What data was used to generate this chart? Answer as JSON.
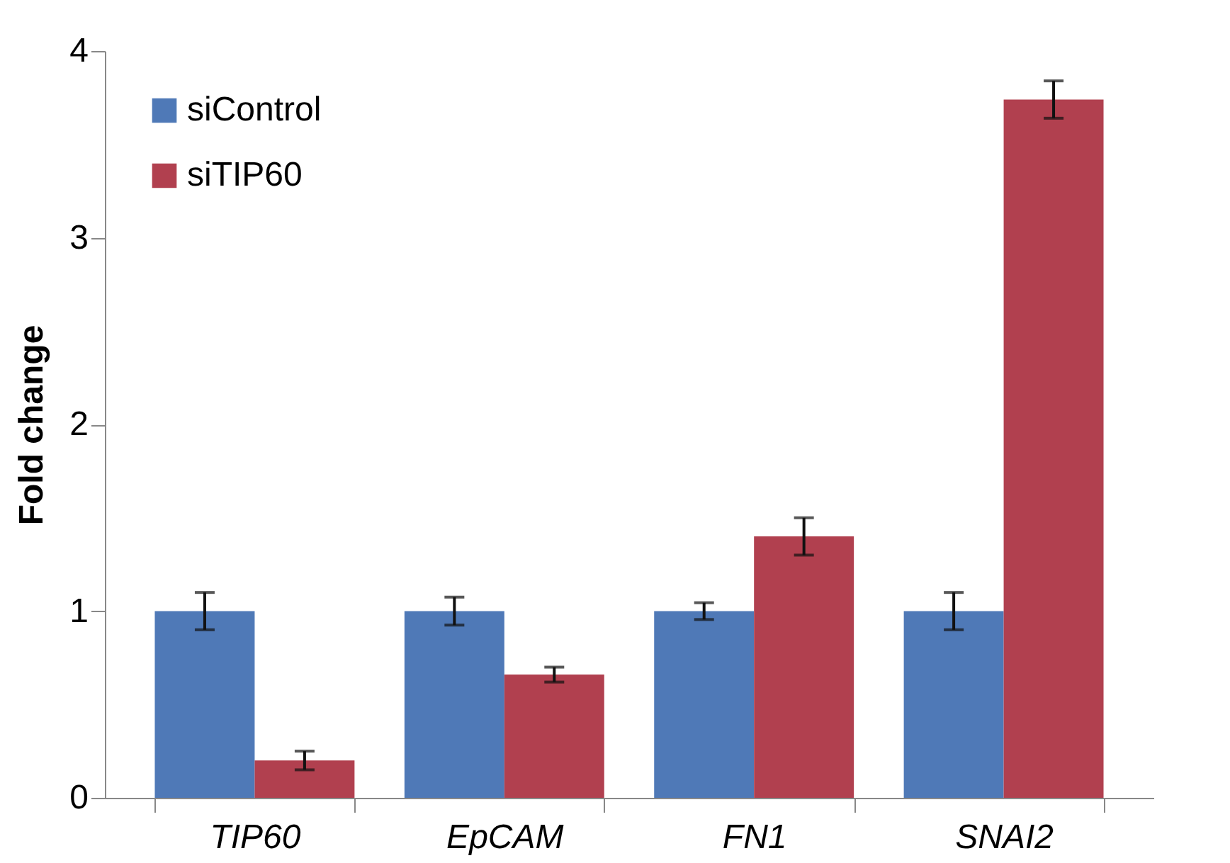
{
  "chart_data": {
    "type": "bar",
    "ylabel": "Fold change",
    "categories": [
      "TIP60",
      "EpCAM",
      "FN1",
      "SNAI2"
    ],
    "series": [
      {
        "name": "siControl",
        "color": "#4f79b7",
        "values": [
          1,
          1,
          1,
          1
        ],
        "errors": [
          0.1,
          0.075,
          0.045,
          0.1
        ]
      },
      {
        "name": "siTIP60",
        "color": "#b1404f",
        "values": [
          0.2,
          0.66,
          1.4,
          3.74
        ],
        "errors": [
          0.05,
          0.04,
          0.1,
          0.1
        ]
      }
    ],
    "ylim": [
      0,
      4
    ],
    "yticks": [
      0,
      1,
      2,
      3,
      4
    ],
    "grid": false,
    "legend": "top left"
  }
}
